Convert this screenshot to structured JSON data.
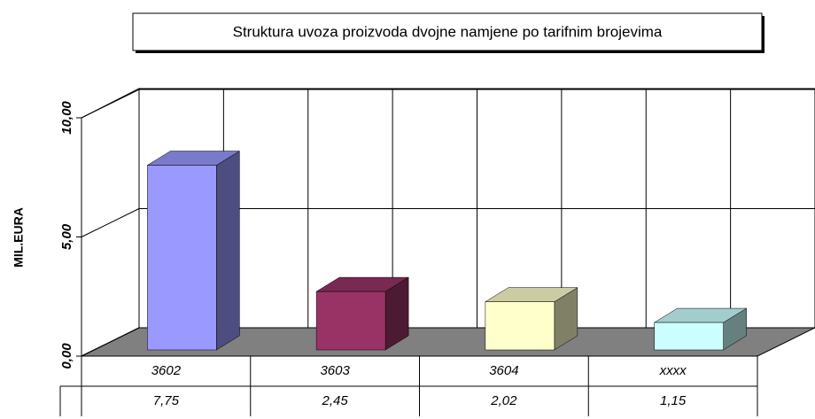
{
  "chart_data": {
    "type": "bar3d",
    "title": "Struktura uvoza proizvoda dvojne namjene po tarifnim brojevima",
    "y_label": "MIL.EURA",
    "categories": [
      "3602",
      "3603",
      "3604",
      "xxxx"
    ],
    "values": [
      7.75,
      2.45,
      2.02,
      1.15
    ],
    "value_labels": [
      "7,75",
      "2,45",
      "2,02",
      "1,15"
    ],
    "colors": [
      "#9999ff",
      "#993366",
      "#ffffcc",
      "#ccffff"
    ],
    "ylim": [
      0,
      10
    ],
    "yticks": [
      {
        "value": 0,
        "label": "0,00"
      },
      {
        "value": 5,
        "label": "5,00"
      },
      {
        "value": 10,
        "label": "10,00"
      }
    ],
    "grid": true
  }
}
